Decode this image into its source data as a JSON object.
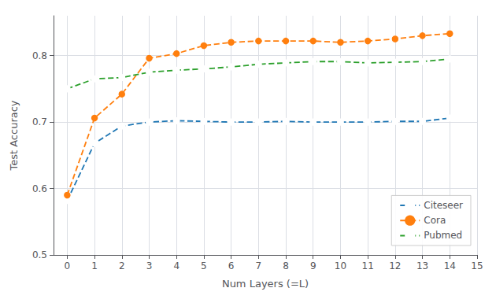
{
  "chart_data": {
    "type": "line",
    "x": [
      0,
      1,
      2,
      3,
      4,
      5,
      6,
      7,
      8,
      9,
      10,
      11,
      12,
      13,
      14
    ],
    "series": [
      {
        "name": "Citeseer",
        "color": "#1f77b4",
        "marker": "open_circle",
        "line_style": "dashed",
        "values": [
          0.582,
          0.668,
          0.694,
          0.7,
          0.702,
          0.701,
          0.7,
          0.7,
          0.701,
          0.7,
          0.7,
          0.7,
          0.701,
          0.701,
          0.706
        ]
      },
      {
        "name": "Cora",
        "color": "#ff7f0e",
        "marker": "circle",
        "line_style": "dashed",
        "values": [
          0.59,
          0.706,
          0.742,
          0.796,
          0.803,
          0.815,
          0.82,
          0.822,
          0.822,
          0.822,
          0.82,
          0.822,
          0.825,
          0.83,
          0.833
        ]
      },
      {
        "name": "Pubmed",
        "color": "#2ca02c",
        "marker": "open_circle",
        "line_style": "dashed",
        "values": [
          0.75,
          0.765,
          0.767,
          0.775,
          0.778,
          0.78,
          0.783,
          0.787,
          0.789,
          0.791,
          0.791,
          0.789,
          0.79,
          0.791,
          0.795
        ]
      }
    ],
    "x_label": "Num Layers (=L)",
    "y_label": "Test Accuracy",
    "xlim": [
      -0.5,
      15
    ],
    "xticks": [
      0,
      1,
      2,
      3,
      4,
      5,
      6,
      7,
      8,
      9,
      10,
      11,
      12,
      13,
      14,
      15
    ],
    "ylim": [
      0.5,
      0.86
    ],
    "yticks": [
      0.5,
      0.6,
      0.7,
      0.8
    ],
    "grid": true,
    "legend": "lower right"
  }
}
